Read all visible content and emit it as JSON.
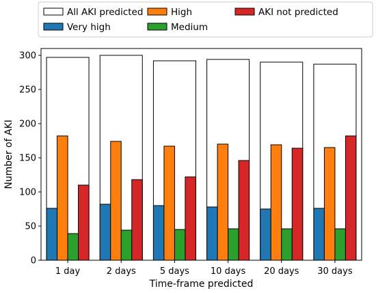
{
  "chart_data": {
    "type": "bar",
    "categories": [
      "1 day",
      "2 days",
      "5 days",
      "10 days",
      "20 days",
      "30 days"
    ],
    "xlabel": "Time-frame predicted",
    "ylabel": "Number of AKI",
    "ylim": [
      0,
      310
    ],
    "yticks": [
      0,
      50,
      100,
      150,
      200,
      250,
      300
    ],
    "grid": false,
    "legend_position": "top",
    "overlay_series": {
      "name": "All AKI predicted",
      "color": "#ffffff",
      "values": [
        297,
        300,
        292,
        294,
        290,
        287
      ]
    },
    "series": [
      {
        "name": "Very high",
        "color": "#1f77b4",
        "values": [
          76,
          82,
          80,
          78,
          75,
          76
        ]
      },
      {
        "name": "High",
        "color": "#ff7f0e",
        "values": [
          182,
          174,
          167,
          170,
          169,
          165
        ]
      },
      {
        "name": "Medium",
        "color": "#2ca02c",
        "values": [
          39,
          44,
          45,
          46,
          46,
          46
        ]
      },
      {
        "name": "AKI not predicted",
        "color": "#d62728",
        "values": [
          110,
          118,
          122,
          146,
          164,
          182
        ]
      }
    ],
    "legend": [
      {
        "name": "All AKI predicted",
        "color": "#ffffff"
      },
      {
        "name": "Very high",
        "color": "#1f77b4"
      },
      {
        "name": "High",
        "color": "#ff7f0e"
      },
      {
        "name": "Medium",
        "color": "#2ca02c"
      },
      {
        "name": "AKI not predicted",
        "color": "#d62728"
      }
    ]
  }
}
